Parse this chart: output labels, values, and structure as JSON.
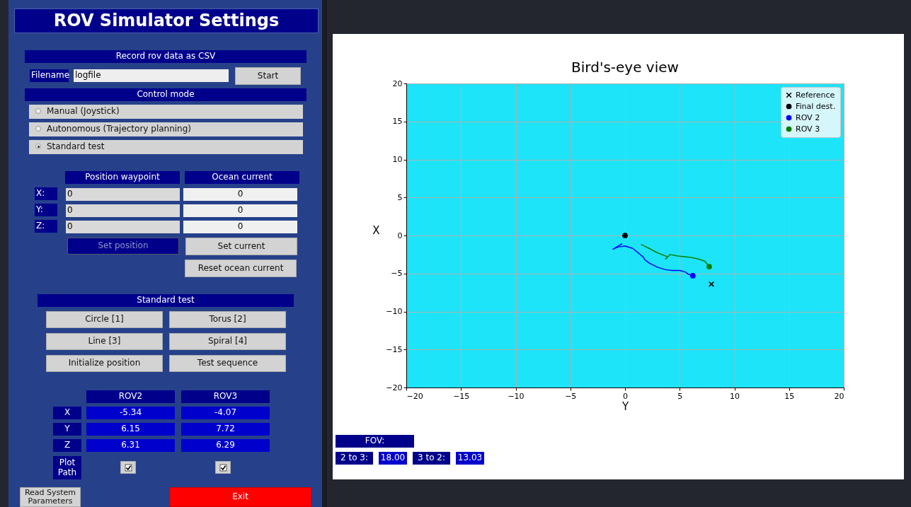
{
  "chart_data": [
    {
      "type": "other",
      "title": "ROV Simulator Settings",
      "annotations": [
        "Record rov data as CSV",
        "Filename",
        "logfile",
        "Start",
        "Control mode",
        "Manual (Joystick)",
        "Autonomous (Trajectory planning)",
        "Standard test",
        "Position waypoint",
        "Ocean current",
        "X:",
        "Y:",
        "Z:",
        "0",
        "0",
        "0",
        "0",
        "0",
        "0",
        "Set position",
        "Set current",
        "Reset ocean current",
        "Standard test",
        "Circle [1]",
        "Torus [2]",
        "Line [3]",
        "Spiral [4]",
        "Initialize position",
        "Test sequence",
        "ROV2",
        "ROV3",
        "X",
        "Y",
        "Z",
        "-5.34",
        "-4.07",
        "6.15",
        "7.72",
        "6.31",
        "6.29",
        "Plot Path",
        "Read System Parameters",
        "Exit"
      ]
    },
    {
      "type": "scatter",
      "title": "Bird's-eye view",
      "xlabel": "Y",
      "ylabel": "X",
      "xlim": [
        -20,
        20
      ],
      "ylim": [
        -20,
        20
      ],
      "xticks": [
        {
          "value": -20,
          "label": "−20"
        },
        {
          "value": -15,
          "label": "−15"
        },
        {
          "value": -10,
          "label": "−10"
        },
        {
          "value": -5,
          "label": "−5"
        },
        0,
        5,
        10,
        15,
        20
      ],
      "yticks": [
        {
          "value": -20,
          "label": "−20"
        },
        {
          "value": -15,
          "label": "−15"
        },
        {
          "value": -10,
          "label": "−10"
        },
        {
          "value": -5,
          "label": "−5"
        },
        0,
        5,
        10,
        15,
        20
      ],
      "grid": true,
      "legend": "top right",
      "series": [
        {
          "type": "line",
          "color": "#0000ff",
          "marker": "none",
          "x": [
            -0.3,
            -1.1,
            -0.6,
            0.0,
            0.7,
            1.3,
            1.7,
            1.8,
            2.3,
            3.0,
            3.7,
            4.3,
            5.0,
            5.5,
            5.8,
            6.2
          ],
          "values": [
            -1.1,
            -1.8,
            -1.5,
            -1.4,
            -1.7,
            -2.4,
            -2.9,
            -3.2,
            -3.7,
            -4.2,
            -4.5,
            -4.6,
            -4.6,
            -4.8,
            -5.1,
            -5.3
          ]
        },
        {
          "type": "line",
          "color": "#008000",
          "marker": "none",
          "x": [
            1.5,
            2.2,
            3.0,
            3.9,
            3.7,
            4.0,
            4.1,
            4.8,
            5.4,
            6.1,
            6.7,
            7.3,
            7.7
          ],
          "values": [
            -1.2,
            -1.7,
            -2.3,
            -2.8,
            -3.1,
            -2.7,
            -2.5,
            -2.7,
            -2.8,
            -2.9,
            -3.1,
            -3.4,
            -4.1
          ]
        },
        {
          "name": "Reference",
          "color": "#000000",
          "marker": "cross",
          "x": [
            7.9
          ],
          "values": [
            -6.4
          ]
        },
        {
          "name": "Final dest.",
          "color": "#000000",
          "marker": "circle",
          "x": [
            0
          ],
          "values": [
            0
          ]
        },
        {
          "name": "ROV 2",
          "color": "#0000ff",
          "marker": "circle",
          "x": [
            6.2
          ],
          "values": [
            -5.3
          ]
        },
        {
          "name": "ROV 3",
          "color": "#008000",
          "marker": "circle",
          "x": [
            7.7
          ],
          "values": [
            -4.1
          ]
        }
      ]
    },
    {
      "type": "other",
      "annotations": [
        "FOV:",
        "2 to 3:",
        "18.00",
        "3 to 2:",
        "13.03"
      ]
    }
  ]
}
